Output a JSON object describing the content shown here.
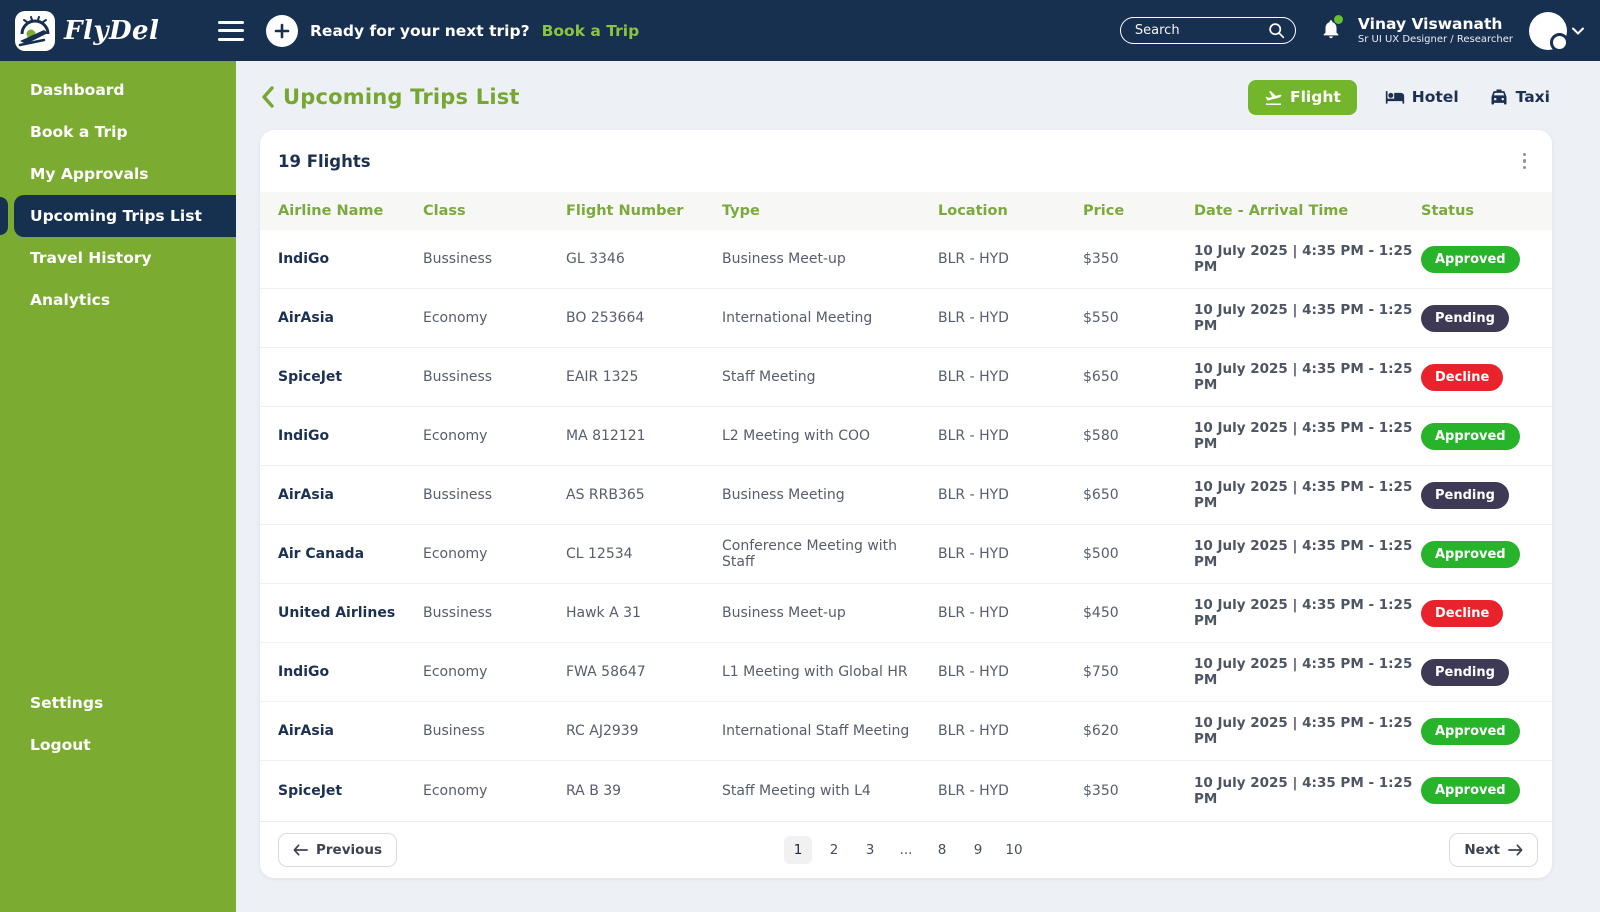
{
  "navbar": {
    "brand": "FlyDel",
    "promo_text": "Ready for your next trip?",
    "promo_link": "Book a Trip",
    "search_placeholder": "Search",
    "user": {
      "name": "Vinay Viswanath",
      "role": "Sr UI UX Designer / Researcher"
    }
  },
  "sidebar": {
    "items": [
      {
        "label": "Dashboard",
        "active": false
      },
      {
        "label": "Book a Trip",
        "active": false
      },
      {
        "label": "My Approvals",
        "active": false
      },
      {
        "label": "Upcoming Trips List",
        "active": true
      },
      {
        "label": "Travel History",
        "active": false
      },
      {
        "label": "Analytics",
        "active": false
      }
    ],
    "footer_items": [
      {
        "label": "Settings"
      },
      {
        "label": "Logout"
      }
    ]
  },
  "page": {
    "title": "Upcoming Trips List",
    "category_buttons": [
      {
        "label": "Flight",
        "icon": "plane-icon",
        "active": true
      },
      {
        "label": "Hotel",
        "icon": "bed-icon",
        "active": false
      },
      {
        "label": "Taxi",
        "icon": "car-icon",
        "active": false
      }
    ]
  },
  "card": {
    "count_label": "19 Flights",
    "columns": [
      "Airline Name",
      "Class",
      "Flight Number",
      "Type",
      "Location",
      "Price",
      "Date - Arrival Time",
      "Status"
    ],
    "rows": [
      {
        "airline": "IndiGo",
        "class": "Bussiness",
        "flight_number": "GL 3346",
        "type": "Business Meet-up",
        "location": "BLR - HYD",
        "price": "$350",
        "date": "10 July 2025 | 4:35 PM - 1:25 PM",
        "status": "Approved"
      },
      {
        "airline": "AirAsia",
        "class": "Economy",
        "flight_number": "BO 253664",
        "type": "International Meeting",
        "location": "BLR - HYD",
        "price": "$550",
        "date": "10 July 2025 | 4:35 PM - 1:25 PM",
        "status": "Pending"
      },
      {
        "airline": "SpiceJet",
        "class": "Bussiness",
        "flight_number": "EAIR 1325",
        "type": "Staff Meeting",
        "location": "BLR - HYD",
        "price": "$650",
        "date": "10 July 2025 | 4:35 PM - 1:25 PM",
        "status": "Decline"
      },
      {
        "airline": "IndiGo",
        "class": "Economy",
        "flight_number": "MA 812121",
        "type": "L2 Meeting with COO",
        "location": "BLR - HYD",
        "price": "$580",
        "date": "10 July 2025 | 4:35 PM - 1:25 PM",
        "status": "Approved"
      },
      {
        "airline": "AirAsia",
        "class": "Bussiness",
        "flight_number": "AS RRB365",
        "type": "Business Meeting",
        "location": "BLR - HYD",
        "price": "$650",
        "date": "10 July 2025 | 4:35 PM - 1:25 PM",
        "status": "Pending"
      },
      {
        "airline": "Air Canada",
        "class": "Economy",
        "flight_number": "CL 12534",
        "type": "Conference Meeting with Staff",
        "location": "BLR - HYD",
        "price": "$500",
        "date": "10 July 2025 | 4:35 PM - 1:25 PM",
        "status": "Approved"
      },
      {
        "airline": "United Airlines",
        "class": "Bussiness",
        "flight_number": "Hawk A 31",
        "type": "Business Meet-up",
        "location": "BLR - HYD",
        "price": "$450",
        "date": "10 July 2025 | 4:35 PM - 1:25 PM",
        "status": "Decline"
      },
      {
        "airline": "IndiGo",
        "class": "Economy",
        "flight_number": "FWA 58647",
        "type": "L1 Meeting with Global HR",
        "location": "BLR - HYD",
        "price": "$750",
        "date": "10 July 2025 | 4:35 PM - 1:25 PM",
        "status": "Pending"
      },
      {
        "airline": "AirAsia",
        "class": "Business",
        "flight_number": "RC AJ2939",
        "type": "International Staff Meeting",
        "location": "BLR - HYD",
        "price": "$620",
        "date": "10 July 2025 | 4:35 PM - 1:25 PM",
        "status": "Approved"
      },
      {
        "airline": "SpiceJet",
        "class": "Economy",
        "flight_number": "RA B 39",
        "type": "Staff Meeting with L4",
        "location": "BLR - HYD",
        "price": "$350",
        "date": "10 July 2025 | 4:35 PM - 1:25 PM",
        "status": "Approved"
      }
    ]
  },
  "pagination": {
    "previous_label": "Previous",
    "next_label": "Next",
    "pages": [
      "1",
      "2",
      "3",
      "...",
      "8",
      "9",
      "10"
    ],
    "active_page": "1"
  },
  "colors": {
    "navy": "#18304F",
    "sidebar_green": "#7BAC31",
    "brand_green": "#76A732",
    "button_green": "#74B62B",
    "link_green": "#8BC53F",
    "status_approved": "#27B42A",
    "status_pending": "#3E3A55",
    "status_decline": "#E9232B"
  }
}
